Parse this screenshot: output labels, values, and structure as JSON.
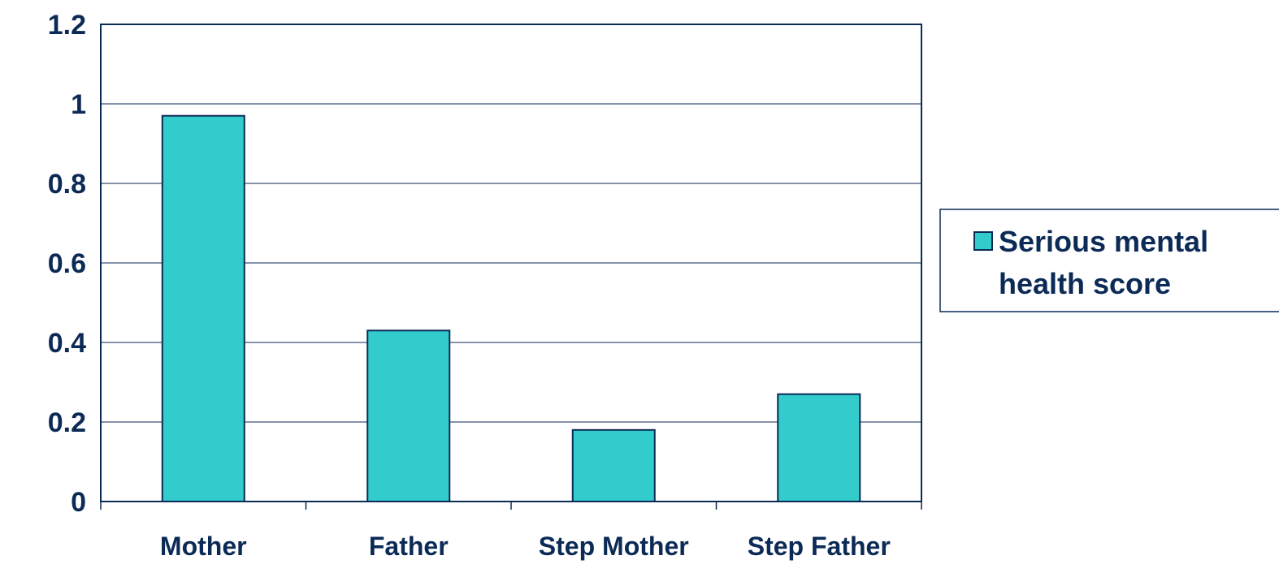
{
  "colors": {
    "bar_fill": "#33CCCC",
    "bar_stroke": "#0B2A55",
    "axis": "#0B2A55",
    "text": "#0B2A55"
  },
  "chart_data": {
    "type": "bar",
    "categories": [
      "Mother",
      "Father",
      "Step Mother",
      "Step Father"
    ],
    "series": [
      {
        "name": "Serious mental health score",
        "values": [
          0.97,
          0.43,
          0.18,
          0.27
        ]
      }
    ],
    "ylim": [
      0,
      1.2
    ],
    "yticks": [
      0,
      0.2,
      0.4,
      0.6,
      0.8,
      1,
      1.2
    ],
    "ytick_labels": [
      "0",
      "0.2",
      "0.4",
      "0.6",
      "0.8",
      "1",
      "1.2"
    ],
    "grid": true,
    "legend": {
      "position": "right",
      "lines": [
        "Serious mental",
        "health score"
      ]
    }
  }
}
